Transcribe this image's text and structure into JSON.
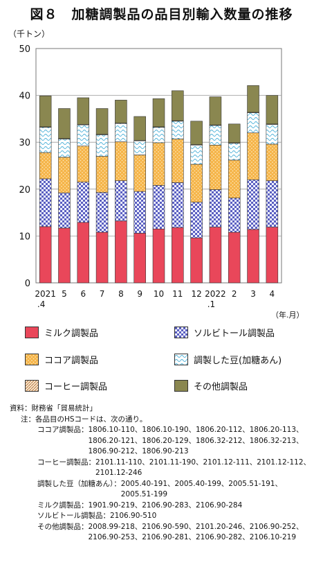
{
  "title": "図８　加糖調製品の品目別輸入数量の推移",
  "unit_label": "（千トン）",
  "axis_suffix": "（年.月）",
  "chart_data": {
    "type": "bar",
    "stacked": true,
    "categories": [
      "2021\n.4",
      "5",
      "6",
      "7",
      "8",
      "9",
      "10",
      "11",
      "12",
      "2022\n.1",
      "2",
      "3",
      "4"
    ],
    "ylim": [
      0,
      50
    ],
    "yticks": [
      0,
      10,
      20,
      30,
      40,
      50
    ],
    "grid": true,
    "series": [
      {
        "name": "ミルク調製品",
        "color": "#e9475a",
        "pattern": "solid",
        "values": [
          12.0,
          11.7,
          12.9,
          10.8,
          13.2,
          10.6,
          11.5,
          11.8,
          9.6,
          11.9,
          10.8,
          11.4,
          11.9
        ]
      },
      {
        "name": "ソルビトール調製品",
        "color": "#6b6fc8",
        "pattern": "check",
        "values": [
          10.2,
          7.5,
          8.6,
          8.5,
          8.6,
          8.9,
          9.3,
          9.6,
          7.6,
          8.0,
          7.3,
          10.6,
          9.9
        ]
      },
      {
        "name": "ココア調製品",
        "color": "#f2a93b",
        "pattern": "dots",
        "values": [
          5.6,
          7.6,
          7.7,
          7.7,
          8.3,
          7.8,
          9.1,
          9.3,
          8.1,
          9.5,
          8.1,
          10.0,
          7.8
        ]
      },
      {
        "name": "調製した豆(加糖あん)",
        "color": "#6fc0e0",
        "pattern": "wave",
        "values": [
          5.4,
          3.9,
          4.5,
          4.6,
          3.9,
          3.0,
          3.3,
          3.8,
          4.1,
          4.2,
          3.6,
          4.3,
          4.2
        ]
      },
      {
        "name": "コーヒー調製品",
        "color": "#c9915a",
        "pattern": "diag",
        "values": [
          0.1,
          0.1,
          0.1,
          0.1,
          0.1,
          0.1,
          0.1,
          0.1,
          0.1,
          0.1,
          0.1,
          0.1,
          0.1
        ]
      },
      {
        "name": "その他調製品",
        "color": "#8a8750",
        "pattern": "solid",
        "values": [
          6.6,
          6.4,
          5.7,
          5.5,
          4.9,
          5.1,
          6.0,
          6.4,
          5.0,
          6.0,
          4.0,
          5.7,
          6.1
        ]
      }
    ]
  },
  "notes": {
    "source": "資料：財務省「貿易統計」",
    "note_head": "注：各品目のHSコードは、次の通り。",
    "hs": [
      {
        "label": "ココア調製品：",
        "lines": [
          "1806.10-110、1806.10-190、1806.20-112、1806.20-113、",
          "1806.20-121、1806.20-129、1806.32-212、1806.32-213、",
          "1806.90-212、1806.90-213"
        ]
      },
      {
        "label": "コーヒー調製品：",
        "lines": [
          "2101.11-110、2101.11-190、2101.12-111、2101.12-112、",
          "2101.12-246"
        ]
      },
      {
        "label": "調製した豆（加糖あん）：",
        "lines": [
          "2005.40-191、2005.40-199、2005.51-191、",
          "2005.51-199"
        ]
      },
      {
        "label": "ミルク調製品：",
        "lines": [
          "1901.90-219、2106.90-283、2106.90-284"
        ]
      },
      {
        "label": "ソルビトール調製品：",
        "lines": [
          "2106.90-510"
        ]
      },
      {
        "label": "その他調製品：",
        "lines": [
          "2008.99-218、2106.90-590、2101.20-246、2106.90-252、",
          "2106.90-253、2106.90-281、2106.90-282、2106.10-219"
        ]
      }
    ]
  }
}
